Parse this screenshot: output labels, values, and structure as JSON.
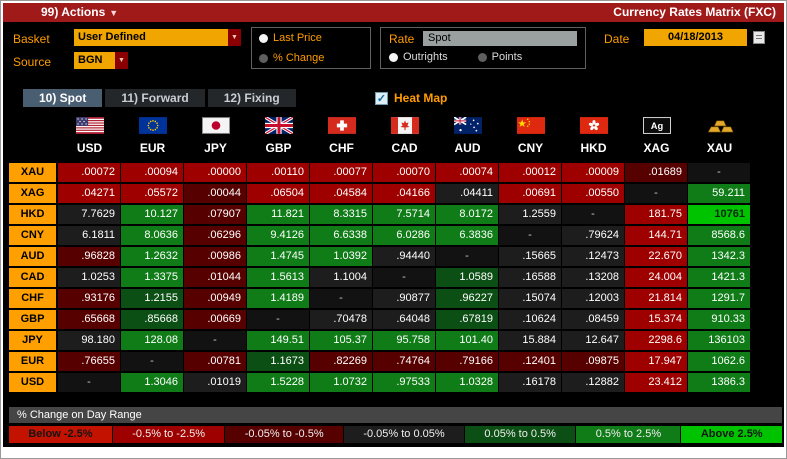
{
  "topbar": {
    "actions_label": "99) Actions",
    "title": "Currency Rates Matrix (FXC)"
  },
  "controls": {
    "basket_label": "Basket",
    "basket_value": "User Defined",
    "source_label": "Source",
    "source_value": "BGN",
    "price_mode": {
      "options": [
        "Last Price",
        "% Change"
      ],
      "selected": "Last Price"
    },
    "rate_label": "Rate",
    "rate_value": "Spot",
    "rate_mode": {
      "options": [
        "Outrights",
        "Points"
      ],
      "selected": "Outrights"
    },
    "date_label": "Date",
    "date_value": "04/18/2013"
  },
  "tabs": [
    {
      "label": "10) Spot",
      "selected": true
    },
    {
      "label": "11) Forward",
      "selected": false
    },
    {
      "label": "12) Fixing",
      "selected": false
    }
  ],
  "heat_map": {
    "label": "Heat Map",
    "checked": true
  },
  "matrix": {
    "columns": [
      "USD",
      "EUR",
      "JPY",
      "GBP",
      "CHF",
      "CAD",
      "AUD",
      "CNY",
      "HKD",
      "XAG",
      "XAU"
    ],
    "rows": [
      {
        "label": "XAU",
        "values": [
          ".00072",
          ".00094",
          ".00000",
          ".00110",
          ".00077",
          ".00070",
          ".00074",
          ".00012",
          ".00009",
          ".01689",
          "-"
        ],
        "levels": [
          "r2",
          "r2",
          "r2",
          "r2",
          "r2",
          "r2",
          "r2",
          "r2",
          "r2",
          "r3",
          "diag"
        ]
      },
      {
        "label": "XAG",
        "values": [
          ".04271",
          ".05572",
          ".00044",
          ".06504",
          ".04584",
          ".04166",
          ".04411",
          ".00691",
          ".00550",
          "-",
          "59.211"
        ],
        "levels": [
          "r2",
          "r2",
          "r3",
          "r2",
          "r2",
          "r2",
          "n",
          "r2",
          "r2",
          "diag",
          "g2"
        ]
      },
      {
        "label": "HKD",
        "values": [
          "7.7629",
          "10.127",
          ".07907",
          "11.821",
          "8.3315",
          "7.5714",
          "8.0172",
          "1.2559",
          "-",
          "181.75",
          "10761"
        ],
        "levels": [
          "n",
          "g2",
          "r3",
          "g2",
          "g2",
          "g2",
          "g2",
          "n",
          "diag",
          "r2",
          "g1"
        ]
      },
      {
        "label": "CNY",
        "values": [
          "6.1811",
          "8.0636",
          ".06296",
          "9.4126",
          "6.6338",
          "6.0286",
          "6.3836",
          "-",
          ".79624",
          "144.71",
          "8568.6"
        ],
        "levels": [
          "n",
          "g2",
          "r3",
          "g2",
          "g2",
          "g2",
          "g2",
          "diag",
          "n",
          "r2",
          "g2"
        ]
      },
      {
        "label": "AUD",
        "values": [
          ".96828",
          "1.2632",
          ".00986",
          "1.4745",
          "1.0392",
          ".94440",
          "-",
          ".15665",
          ".12473",
          "22.670",
          "1342.3"
        ],
        "levels": [
          "r3",
          "g2",
          "r3",
          "g2",
          "g2",
          "n",
          "diag",
          "n",
          "n",
          "r2",
          "g2"
        ]
      },
      {
        "label": "CAD",
        "values": [
          "1.0253",
          "1.3375",
          ".01044",
          "1.5613",
          "1.1004",
          "-",
          "1.0589",
          ".16588",
          ".13208",
          "24.004",
          "1421.3"
        ],
        "levels": [
          "n",
          "g2",
          "r3",
          "g2",
          "n",
          "diag",
          "g3",
          "n",
          "n",
          "r2",
          "g2"
        ]
      },
      {
        "label": "CHF",
        "values": [
          ".93176",
          "1.2155",
          ".00949",
          "1.4189",
          "-",
          ".90877",
          ".96227",
          ".15074",
          ".12003",
          "21.814",
          "1291.7"
        ],
        "levels": [
          "r3",
          "g3",
          "r3",
          "g2",
          "diag",
          "n",
          "g3",
          "n",
          "n",
          "r2",
          "g2"
        ]
      },
      {
        "label": "GBP",
        "values": [
          ".65668",
          ".85668",
          ".00669",
          "-",
          ".70478",
          ".64048",
          ".67819",
          ".10624",
          ".08459",
          "15.374",
          "910.33"
        ],
        "levels": [
          "r3",
          "g3",
          "r3",
          "diag",
          "n",
          "n",
          "g3",
          "n",
          "n",
          "r2",
          "g2"
        ]
      },
      {
        "label": "JPY",
        "values": [
          "98.180",
          "128.08",
          "-",
          "149.51",
          "105.37",
          "95.758",
          "101.40",
          "15.884",
          "12.647",
          "2298.6",
          "136103"
        ],
        "levels": [
          "n",
          "g2",
          "diag",
          "g2",
          "g2",
          "g2",
          "g2",
          "n",
          "n",
          "r2",
          "g2"
        ]
      },
      {
        "label": "EUR",
        "values": [
          ".76655",
          "-",
          ".00781",
          "1.1673",
          ".82269",
          ".74764",
          ".79166",
          ".12401",
          ".09875",
          "17.947",
          "1062.6"
        ],
        "levels": [
          "r3",
          "diag",
          "r3",
          "g3",
          "r3",
          "r3",
          "r3",
          "r3",
          "r3",
          "r2",
          "g2"
        ]
      },
      {
        "label": "USD",
        "values": [
          "-",
          "1.3046",
          ".01019",
          "1.5228",
          "1.0732",
          ".97533",
          "1.0328",
          ".16178",
          ".12882",
          "23.412",
          "1386.3"
        ],
        "levels": [
          "diag",
          "g2",
          "n",
          "g2",
          "g2",
          "g2",
          "g2",
          "n",
          "n",
          "r2",
          "g2"
        ]
      }
    ]
  },
  "legend": {
    "title": "% Change on Day Range",
    "items": [
      {
        "label": "Below -2.5%",
        "level": "r1"
      },
      {
        "label": "-0.5% to -2.5%",
        "level": "r2"
      },
      {
        "label": "-0.05% to -0.5%",
        "level": "r3"
      },
      {
        "label": "-0.05% to 0.05%",
        "level": "n"
      },
      {
        "label": "0.05% to 0.5%",
        "level": "g3"
      },
      {
        "label": "0.5% to 2.5%",
        "level": "g2"
      },
      {
        "label": "Above 2.5%",
        "level": "g1"
      }
    ]
  },
  "heat_colors": {
    "r1": "#c41200",
    "r2": "#9e0000",
    "r3": "#570000",
    "n": "#1d1d1d",
    "g3": "#0c4f14",
    "g2": "#107c18",
    "g1": "#00c300",
    "diag": "#121212"
  },
  "ui_colors": {
    "topbar_red": "#a01a1a",
    "amber_field": "#f0a500",
    "orange_text": "#ff9c00",
    "row_label_amber": "#ffa000",
    "tab_selected": "#4a5e72"
  }
}
